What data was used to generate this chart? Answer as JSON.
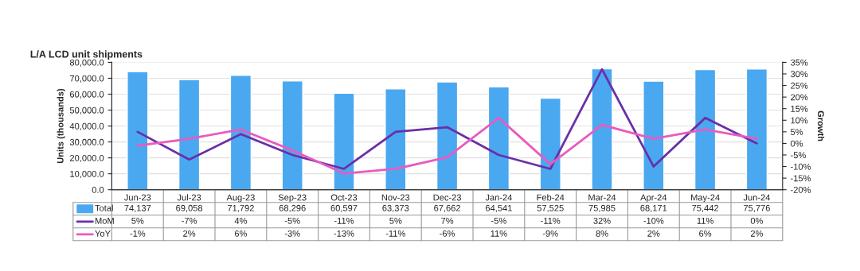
{
  "chart_data": {
    "type": "bar",
    "title": "L/A LCD unit shipments",
    "ylabel": "Units (thousands)",
    "y2label": "Growth",
    "categories": [
      "Jun-23",
      "Jul-23",
      "Aug-23",
      "Sep-23",
      "Oct-23",
      "Nov-23",
      "Dec-23",
      "Jan-24",
      "Feb-24",
      "Mar-24",
      "Apr-24",
      "May-24",
      "Jun-24"
    ],
    "series": [
      {
        "name": "Total",
        "color": "#4aa8f0",
        "values": [
          74137,
          69058,
          71792,
          68296,
          60597,
          63373,
          67662,
          64541,
          57525,
          75985,
          68171,
          75442,
          75776
        ],
        "value_labels": [
          "74,137",
          "69,058",
          "71,792",
          "68,296",
          "60,597",
          "63,373",
          "67,662",
          "64,541",
          "57,525",
          "75,985",
          "68,171",
          "75,442",
          "75,776"
        ]
      },
      {
        "name": "MoM",
        "type": "line",
        "axis": "y2",
        "color": "#6a2fa8",
        "values": [
          5,
          -7,
          4,
          -5,
          -11,
          5,
          7,
          -5,
          -11,
          32,
          -10,
          11,
          0
        ],
        "value_labels": [
          "5%",
          "-7%",
          "4%",
          "-5%",
          "-11%",
          "5%",
          "7%",
          "-5%",
          "-11%",
          "32%",
          "-10%",
          "11%",
          "0%"
        ]
      },
      {
        "name": "YoY",
        "type": "line",
        "axis": "y2",
        "color": "#e85bbf",
        "values": [
          -1,
          2,
          6,
          -3,
          -13,
          -11,
          -6,
          11,
          -9,
          8,
          2,
          6,
          2
        ],
        "value_labels": [
          "-1%",
          "2%",
          "6%",
          "-3%",
          "-13%",
          "-11%",
          "-6%",
          "11%",
          "-9%",
          "8%",
          "2%",
          "6%",
          "2%"
        ]
      }
    ],
    "ylim": [
      0,
      80000
    ],
    "yticks": [
      {
        "value": 0,
        "label": "0.0"
      },
      {
        "value": 10000,
        "label": "10,000.0"
      },
      {
        "value": 20000,
        "label": "20,000.0"
      },
      {
        "value": 30000,
        "label": "30,000.0"
      },
      {
        "value": 40000,
        "label": "40,000.0"
      },
      {
        "value": 50000,
        "label": "50,000.0"
      },
      {
        "value": 60000,
        "label": "60,000.0"
      },
      {
        "value": 70000,
        "label": "70,000.0"
      },
      {
        "value": 80000,
        "label": "80,000.0"
      }
    ],
    "y2lim": [
      -20,
      35
    ],
    "y2ticks": [
      {
        "value": -20,
        "label": "-20%"
      },
      {
        "value": -15,
        "label": "-15%"
      },
      {
        "value": -10,
        "label": "-10%"
      },
      {
        "value": -5,
        "label": "-5%"
      },
      {
        "value": 0,
        "label": "0%"
      },
      {
        "value": 5,
        "label": "5%"
      },
      {
        "value": 10,
        "label": "10%"
      },
      {
        "value": 15,
        "label": "15%"
      },
      {
        "value": 20,
        "label": "20%"
      },
      {
        "value": 25,
        "label": "25%"
      },
      {
        "value": 30,
        "label": "30%"
      },
      {
        "value": 35,
        "label": "35%"
      }
    ],
    "grid": "y",
    "legend": "bottom"
  }
}
